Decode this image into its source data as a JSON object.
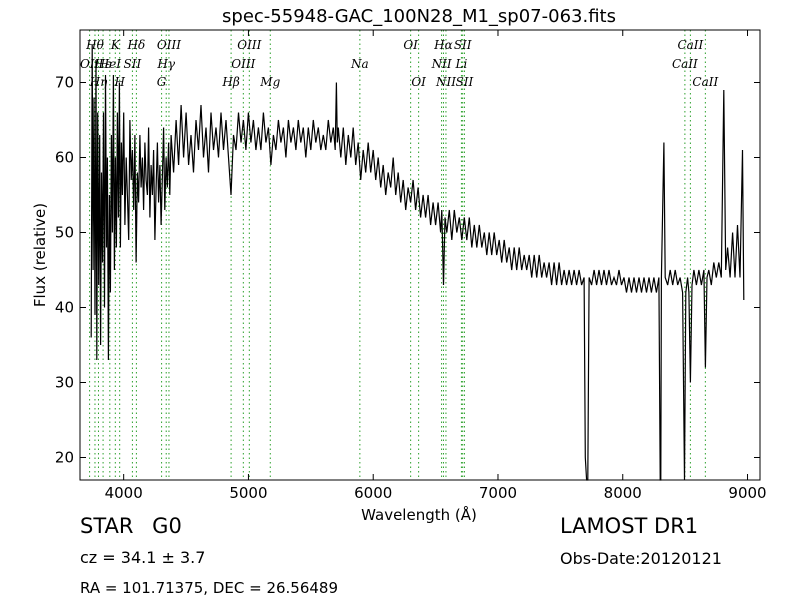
{
  "chart_data": {
    "type": "line",
    "title": "spec-55948-GAC_100N28_M1_sp07-063.fits",
    "xlabel": "Wavelength (Å)",
    "ylabel": "Flux (relative)",
    "xlim": [
      3650,
      9100
    ],
    "ylim": [
      17,
      77
    ],
    "xticks": [
      4000,
      5000,
      6000,
      7000,
      8000,
      9000
    ],
    "yticks": [
      20,
      30,
      40,
      50,
      60,
      70
    ],
    "grid": false,
    "line_color": "#000000",
    "marker_color": "#2ca02c",
    "spectrum": [
      [
        3740,
        36
      ],
      [
        3748,
        75
      ],
      [
        3755,
        45
      ],
      [
        3762,
        68
      ],
      [
        3770,
        39
      ],
      [
        3778,
        73
      ],
      [
        3785,
        33
      ],
      [
        3792,
        66
      ],
      [
        3800,
        43
      ],
      [
        3808,
        63
      ],
      [
        3815,
        35
      ],
      [
        3822,
        58
      ],
      [
        3830,
        46
      ],
      [
        3838,
        66
      ],
      [
        3846,
        40
      ],
      [
        3854,
        71
      ],
      [
        3862,
        48
      ],
      [
        3870,
        60
      ],
      [
        3878,
        33
      ],
      [
        3886,
        55
      ],
      [
        3894,
        42
      ],
      [
        3902,
        63
      ],
      [
        3910,
        50
      ],
      [
        3918,
        71
      ],
      [
        3926,
        45
      ],
      [
        3934,
        60
      ],
      [
        3942,
        48
      ],
      [
        3950,
        66
      ],
      [
        3958,
        52
      ],
      [
        3966,
        70
      ],
      [
        3974,
        48
      ],
      [
        3982,
        62
      ],
      [
        3990,
        55
      ],
      [
        4000,
        66
      ],
      [
        4010,
        51
      ],
      [
        4020,
        60
      ],
      [
        4030,
        55
      ],
      [
        4040,
        49
      ],
      [
        4050,
        65
      ],
      [
        4060,
        57
      ],
      [
        4070,
        61
      ],
      [
        4080,
        53
      ],
      [
        4090,
        63
      ],
      [
        4100,
        46
      ],
      [
        4110,
        58
      ],
      [
        4120,
        54
      ],
      [
        4130,
        63
      ],
      [
        4140,
        56
      ],
      [
        4150,
        60
      ],
      [
        4160,
        53
      ],
      [
        4170,
        62
      ],
      [
        4180,
        57
      ],
      [
        4190,
        55
      ],
      [
        4200,
        64
      ],
      [
        4210,
        52
      ],
      [
        4220,
        59
      ],
      [
        4230,
        55
      ],
      [
        4240,
        61
      ],
      [
        4250,
        49
      ],
      [
        4260,
        56
      ],
      [
        4270,
        62
      ],
      [
        4280,
        54
      ],
      [
        4290,
        59
      ],
      [
        4300,
        51
      ],
      [
        4310,
        57
      ],
      [
        4320,
        64
      ],
      [
        4330,
        53
      ],
      [
        4340,
        60
      ],
      [
        4350,
        56
      ],
      [
        4360,
        62
      ],
      [
        4370,
        55
      ],
      [
        4380,
        63
      ],
      [
        4400,
        58
      ],
      [
        4420,
        65
      ],
      [
        4440,
        59
      ],
      [
        4460,
        67
      ],
      [
        4480,
        60
      ],
      [
        4500,
        66
      ],
      [
        4520,
        59
      ],
      [
        4540,
        63
      ],
      [
        4560,
        58
      ],
      [
        4580,
        65
      ],
      [
        4600,
        61
      ],
      [
        4620,
        67
      ],
      [
        4640,
        60
      ],
      [
        4660,
        64
      ],
      [
        4680,
        58
      ],
      [
        4700,
        66
      ],
      [
        4720,
        61
      ],
      [
        4740,
        64
      ],
      [
        4760,
        60
      ],
      [
        4780,
        66
      ],
      [
        4800,
        61
      ],
      [
        4820,
        65
      ],
      [
        4840,
        60
      ],
      [
        4860,
        55
      ],
      [
        4880,
        63
      ],
      [
        4900,
        61
      ],
      [
        4920,
        66
      ],
      [
        4940,
        62
      ],
      [
        4960,
        65
      ],
      [
        4980,
        61
      ],
      [
        5000,
        66
      ],
      [
        5020,
        62
      ],
      [
        5040,
        65
      ],
      [
        5060,
        61
      ],
      [
        5080,
        64
      ],
      [
        5100,
        61
      ],
      [
        5120,
        66
      ],
      [
        5140,
        62
      ],
      [
        5160,
        64
      ],
      [
        5180,
        59
      ],
      [
        5200,
        63
      ],
      [
        5220,
        61
      ],
      [
        5240,
        65
      ],
      [
        5260,
        62
      ],
      [
        5280,
        64
      ],
      [
        5300,
        60
      ],
      [
        5320,
        65
      ],
      [
        5340,
        62
      ],
      [
        5360,
        64
      ],
      [
        5380,
        61
      ],
      [
        5400,
        65
      ],
      [
        5420,
        62
      ],
      [
        5440,
        64
      ],
      [
        5460,
        60
      ],
      [
        5480,
        64
      ],
      [
        5500,
        61
      ],
      [
        5520,
        65
      ],
      [
        5540,
        62
      ],
      [
        5560,
        64
      ],
      [
        5580,
        61
      ],
      [
        5600,
        63
      ],
      [
        5620,
        61
      ],
      [
        5640,
        65
      ],
      [
        5660,
        62
      ],
      [
        5680,
        64
      ],
      [
        5695,
        61
      ],
      [
        5705,
        70
      ],
      [
        5712,
        62
      ],
      [
        5720,
        64
      ],
      [
        5740,
        60
      ],
      [
        5760,
        64
      ],
      [
        5780,
        59
      ],
      [
        5800,
        63
      ],
      [
        5820,
        60
      ],
      [
        5840,
        64
      ],
      [
        5860,
        59
      ],
      [
        5880,
        62
      ],
      [
        5900,
        57
      ],
      [
        5920,
        61
      ],
      [
        5940,
        58
      ],
      [
        5960,
        62
      ],
      [
        5980,
        58
      ],
      [
        6000,
        61
      ],
      [
        6020,
        57
      ],
      [
        6040,
        60
      ],
      [
        6060,
        56
      ],
      [
        6080,
        59
      ],
      [
        6100,
        55
      ],
      [
        6120,
        58
      ],
      [
        6140,
        56
      ],
      [
        6160,
        60
      ],
      [
        6180,
        55
      ],
      [
        6200,
        58
      ],
      [
        6220,
        54
      ],
      [
        6240,
        57
      ],
      [
        6260,
        53
      ],
      [
        6280,
        56
      ],
      [
        6300,
        54
      ],
      [
        6320,
        57
      ],
      [
        6340,
        53
      ],
      [
        6360,
        56
      ],
      [
        6380,
        52
      ],
      [
        6400,
        55
      ],
      [
        6420,
        52
      ],
      [
        6440,
        55
      ],
      [
        6460,
        51
      ],
      [
        6480,
        54
      ],
      [
        6500,
        51
      ],
      [
        6520,
        54
      ],
      [
        6540,
        50
      ],
      [
        6550,
        53
      ],
      [
        6563,
        43
      ],
      [
        6575,
        52
      ],
      [
        6590,
        50
      ],
      [
        6610,
        53
      ],
      [
        6630,
        49
      ],
      [
        6650,
        53
      ],
      [
        6670,
        50
      ],
      [
        6690,
        52
      ],
      [
        6710,
        49
      ],
      [
        6730,
        52
      ],
      [
        6750,
        49
      ],
      [
        6770,
        52
      ],
      [
        6790,
        48
      ],
      [
        6810,
        51
      ],
      [
        6830,
        48
      ],
      [
        6850,
        51
      ],
      [
        6870,
        48
      ],
      [
        6890,
        50
      ],
      [
        6910,
        47
      ],
      [
        6930,
        50
      ],
      [
        6950,
        47
      ],
      [
        6970,
        50
      ],
      [
        6990,
        47
      ],
      [
        7010,
        49
      ],
      [
        7030,
        46
      ],
      [
        7050,
        49
      ],
      [
        7070,
        46
      ],
      [
        7090,
        48
      ],
      [
        7110,
        45
      ],
      [
        7130,
        48
      ],
      [
        7150,
        45
      ],
      [
        7170,
        48
      ],
      [
        7190,
        45
      ],
      [
        7210,
        47
      ],
      [
        7230,
        45
      ],
      [
        7250,
        47
      ],
      [
        7270,
        44
      ],
      [
        7290,
        47
      ],
      [
        7310,
        44
      ],
      [
        7330,
        47
      ],
      [
        7350,
        44
      ],
      [
        7370,
        46
      ],
      [
        7390,
        44
      ],
      [
        7410,
        46
      ],
      [
        7430,
        43
      ],
      [
        7450,
        46
      ],
      [
        7470,
        43
      ],
      [
        7490,
        46
      ],
      [
        7510,
        43
      ],
      [
        7530,
        45
      ],
      [
        7550,
        43
      ],
      [
        7570,
        45
      ],
      [
        7590,
        43
      ],
      [
        7610,
        45
      ],
      [
        7630,
        43
      ],
      [
        7650,
        45
      ],
      [
        7670,
        43
      ],
      [
        7690,
        44
      ],
      [
        7700,
        20
      ],
      [
        7710,
        17
      ],
      [
        7720,
        17
      ],
      [
        7730,
        44
      ],
      [
        7750,
        43
      ],
      [
        7770,
        45
      ],
      [
        7790,
        43
      ],
      [
        7810,
        45
      ],
      [
        7830,
        43
      ],
      [
        7850,
        45
      ],
      [
        7870,
        43
      ],
      [
        7890,
        45
      ],
      [
        7910,
        43
      ],
      [
        7930,
        44
      ],
      [
        7950,
        43
      ],
      [
        7970,
        45
      ],
      [
        7990,
        43
      ],
      [
        8010,
        44
      ],
      [
        8030,
        42
      ],
      [
        8050,
        44
      ],
      [
        8070,
        42
      ],
      [
        8090,
        44
      ],
      [
        8110,
        42
      ],
      [
        8130,
        44
      ],
      [
        8150,
        42
      ],
      [
        8170,
        44
      ],
      [
        8190,
        42
      ],
      [
        8210,
        44
      ],
      [
        8230,
        42
      ],
      [
        8250,
        44
      ],
      [
        8270,
        42
      ],
      [
        8290,
        44
      ],
      [
        8300,
        17
      ],
      [
        8305,
        17
      ],
      [
        8310,
        44
      ],
      [
        8330,
        62
      ],
      [
        8340,
        44
      ],
      [
        8360,
        43
      ],
      [
        8380,
        45
      ],
      [
        8400,
        43
      ],
      [
        8420,
        45
      ],
      [
        8440,
        43
      ],
      [
        8460,
        44
      ],
      [
        8480,
        42
      ],
      [
        8495,
        17
      ],
      [
        8505,
        42
      ],
      [
        8520,
        44
      ],
      [
        8530,
        42
      ],
      [
        8542,
        30
      ],
      [
        8555,
        43
      ],
      [
        8570,
        45
      ],
      [
        8590,
        43
      ],
      [
        8610,
        45
      ],
      [
        8630,
        43
      ],
      [
        8650,
        45
      ],
      [
        8662,
        32
      ],
      [
        8675,
        44
      ],
      [
        8690,
        45
      ],
      [
        8710,
        43
      ],
      [
        8730,
        46
      ],
      [
        8750,
        44
      ],
      [
        8770,
        46
      ],
      [
        8790,
        44
      ],
      [
        8810,
        69
      ],
      [
        8825,
        45
      ],
      [
        8840,
        48
      ],
      [
        8860,
        44
      ],
      [
        8880,
        50
      ],
      [
        8900,
        44
      ],
      [
        8920,
        51
      ],
      [
        8940,
        44
      ],
      [
        8960,
        61
      ],
      [
        8970,
        41
      ]
    ],
    "line_markers": [
      {
        "w": 3727,
        "top": "OII",
        "row": 2
      },
      {
        "w": 3770,
        "top": "Hθ",
        "row": 1
      },
      {
        "w": 3798,
        "top": "Hη",
        "row": 3
      },
      {
        "w": 3835,
        "top": "Hε",
        "row": 2
      },
      {
        "w": 3889,
        "top": "HeI",
        "row": 2
      },
      {
        "w": 3933,
        "top": "K",
        "row": 1
      },
      {
        "w": 3968,
        "top": "H",
        "row": 3
      },
      {
        "w": 4070,
        "top": "SII",
        "row": 2
      },
      {
        "w": 4102,
        "top": "Hδ",
        "row": 1
      },
      {
        "w": 4304,
        "top": "G",
        "row": 3
      },
      {
        "w": 4341,
        "top": "Hγ",
        "row": 2
      },
      {
        "w": 4363,
        "top": "OIII",
        "row": 1
      },
      {
        "w": 4861,
        "top": "Hβ",
        "row": 3
      },
      {
        "w": 4959,
        "top": "OIII",
        "row": 2
      },
      {
        "w": 5007,
        "top": "OIII",
        "row": 1
      },
      {
        "w": 5175,
        "top": "Mg",
        "row": 3
      },
      {
        "w": 5893,
        "top": "Na",
        "row": 2
      },
      {
        "w": 6300,
        "top": "OI",
        "row": 1
      },
      {
        "w": 6364,
        "top": "OI",
        "row": 3
      },
      {
        "w": 6548,
        "top": "NII",
        "row": 2
      },
      {
        "w": 6563,
        "top": "Hα",
        "row": 1
      },
      {
        "w": 6583,
        "top": "NII",
        "row": 3
      },
      {
        "w": 6707,
        "top": "Li",
        "row": 2
      },
      {
        "w": 6717,
        "top": "SII",
        "row": 1
      },
      {
        "w": 6731,
        "top": "SII",
        "row": 3
      },
      {
        "w": 8498,
        "top": "CaII",
        "row": 2
      },
      {
        "w": 8542,
        "top": "CaII",
        "row": 1
      },
      {
        "w": 8662,
        "top": "CaII",
        "row": 3
      }
    ]
  },
  "info": {
    "class_label": "STAR",
    "subclass": "G0",
    "survey": "LAMOST DR1",
    "redshift": "cz = 34.1 ± 3.7",
    "obs_date": "Obs-Date:20120121",
    "coords": "RA = 101.71375, DEC = 26.56489"
  }
}
